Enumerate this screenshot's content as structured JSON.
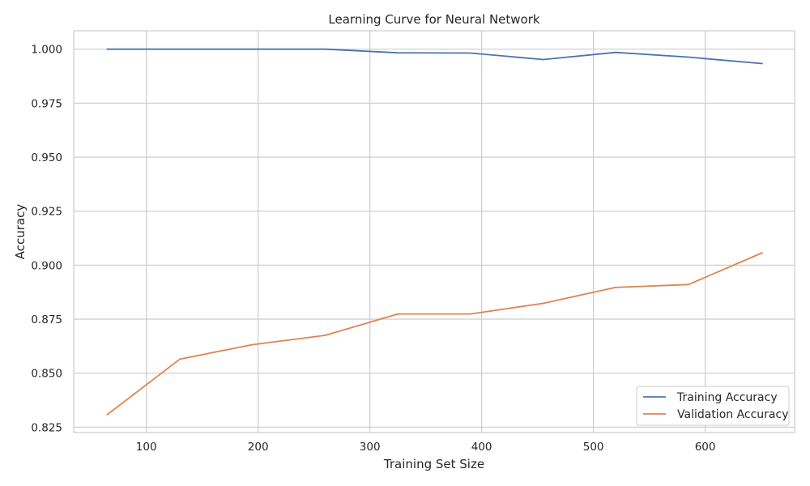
{
  "chart_data": {
    "type": "line",
    "title": "Learning Curve for Neural Network",
    "xlabel": "Training Set Size",
    "ylabel": "Accuracy",
    "xlim": [
      35,
      680
    ],
    "ylim": [
      0.8225,
      1.0085
    ],
    "xticks": [
      100,
      200,
      300,
      400,
      500,
      600
    ],
    "yticks": [
      0.825,
      0.85,
      0.875,
      0.9,
      0.925,
      0.95,
      0.975,
      1.0
    ],
    "xtick_labels": [
      "100",
      "200",
      "300",
      "400",
      "500",
      "600"
    ],
    "ytick_labels": [
      "0.825",
      "0.850",
      "0.875",
      "0.900",
      "0.925",
      "0.950",
      "0.975",
      "1.000"
    ],
    "grid": true,
    "legend_position": "bottom-right",
    "x": [
      65,
      130,
      195,
      260,
      325,
      390,
      455,
      520,
      585,
      651
    ],
    "series": [
      {
        "name": "Training Accuracy",
        "color": "#4c72b0",
        "values": [
          1.0,
          1.0,
          1.0,
          1.0,
          0.9983,
          0.9982,
          0.9952,
          0.9985,
          0.9963,
          0.9933
        ]
      },
      {
        "name": "Validation Accuracy",
        "color": "#dd8452",
        "values": [
          0.8308,
          0.8565,
          0.8632,
          0.8675,
          0.8774,
          0.8774,
          0.8823,
          0.8897,
          0.891,
          0.9057
        ]
      }
    ]
  }
}
